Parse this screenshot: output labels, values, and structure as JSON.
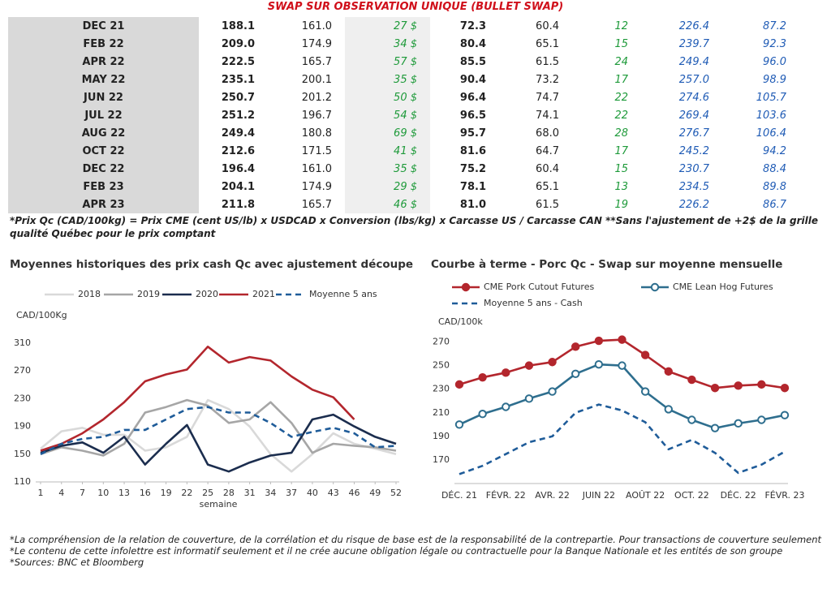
{
  "table": {
    "title": "SWAP SUR OBSERVATION UNIQUE (BULLET SWAP)",
    "rows": [
      [
        "DEC 21",
        "188.1",
        "161.0",
        "27 $",
        "72.3",
        "60.4",
        "12",
        "226.4",
        "87.2"
      ],
      [
        "FEB 22",
        "209.0",
        "174.9",
        "34 $",
        "80.4",
        "65.1",
        "15",
        "239.7",
        "92.3"
      ],
      [
        "APR 22",
        "222.5",
        "165.7",
        "57 $",
        "85.5",
        "61.5",
        "24",
        "249.4",
        "96.0"
      ],
      [
        "MAY 22",
        "235.1",
        "200.1",
        "35 $",
        "90.4",
        "73.2",
        "17",
        "257.0",
        "98.9"
      ],
      [
        "JUN 22",
        "250.7",
        "201.2",
        "50 $",
        "96.4",
        "74.7",
        "22",
        "274.6",
        "105.7"
      ],
      [
        "JUL 22",
        "251.2",
        "196.7",
        "54 $",
        "96.5",
        "74.1",
        "22",
        "269.4",
        "103.6"
      ],
      [
        "AUG 22",
        "249.4",
        "180.8",
        "69 $",
        "95.7",
        "68.0",
        "28",
        "276.7",
        "106.4"
      ],
      [
        "OCT 22",
        "212.6",
        "171.5",
        "41 $",
        "81.6",
        "64.7",
        "17",
        "245.2",
        "94.2"
      ],
      [
        "DEC 22",
        "196.4",
        "161.0",
        "35 $",
        "75.2",
        "60.4",
        "15",
        "230.7",
        "88.4"
      ],
      [
        "FEB 23",
        "204.1",
        "174.9",
        "29 $",
        "78.1",
        "65.1",
        "13",
        "234.5",
        "89.8"
      ],
      [
        "APR 23",
        "211.8",
        "165.7",
        "46 $",
        "81.0",
        "61.5",
        "19",
        "226.2",
        "86.7"
      ]
    ]
  },
  "table_note": "*Prix Qc (CAD/100kg) = Prix CME (cent US/lb) x USDCAD x Conversion (lbs/kg) x Carcasse US / Carcasse CAN **Sans l'ajustement de +2$ de la grille qualité Québec pour le prix comptant",
  "chart_data": [
    {
      "type": "line",
      "title": "Moyennes historiques des prix cash Qc avec ajustement découpe",
      "y_label": "CAD/100Kg",
      "x_label": "semaine",
      "x": [
        1,
        4,
        7,
        10,
        13,
        16,
        19,
        22,
        25,
        28,
        31,
        34,
        37,
        40,
        43,
        46,
        49,
        52
      ],
      "xlim": [
        1,
        52
      ],
      "xticks": [
        1,
        4,
        7,
        10,
        13,
        16,
        19,
        22,
        25,
        28,
        31,
        34,
        37,
        40,
        43,
        46,
        49,
        52
      ],
      "ylim": [
        110,
        310
      ],
      "yticks": [
        110,
        150,
        190,
        230,
        270,
        310
      ],
      "grid": false,
      "series": [
        {
          "name": "2018",
          "color": "#d9d9d9",
          "dash": false,
          "values": [
            158,
            183,
            188,
            178,
            178,
            155,
            160,
            175,
            228,
            215,
            190,
            150,
            125,
            150,
            180,
            165,
            158,
            150
          ]
        },
        {
          "name": "2019",
          "color": "#a6a6a6",
          "dash": false,
          "values": [
            150,
            160,
            155,
            148,
            165,
            210,
            218,
            228,
            220,
            195,
            200,
            225,
            195,
            152,
            165,
            162,
            160,
            155
          ]
        },
        {
          "name": "2020",
          "color": "#1b2d4e",
          "dash": false,
          "values": [
            152,
            162,
            167,
            152,
            175,
            135,
            165,
            192,
            135,
            125,
            138,
            148,
            152,
            200,
            207,
            190,
            175,
            165
          ]
        },
        {
          "name": "2021",
          "color": "#b3262d",
          "dash": false,
          "values": [
            155,
            165,
            180,
            200,
            225,
            255,
            265,
            272,
            305,
            282,
            290,
            285,
            262,
            243,
            232,
            200,
            null,
            null
          ]
        },
        {
          "name": "Moyenne 5 ans",
          "color": "#1f5c99",
          "dash": true,
          "values": [
            150,
            165,
            172,
            175,
            185,
            185,
            200,
            215,
            218,
            210,
            210,
            195,
            175,
            182,
            188,
            180,
            160,
            162
          ]
        }
      ]
    },
    {
      "type": "line",
      "title": "Courbe à terme - Porc Qc - Swap sur moyenne mensuelle",
      "y_label": "CAD/100k",
      "categories": [
        "DÉC. 21",
        null,
        "FÉVR. 22",
        null,
        "AVR. 22",
        null,
        "JUIN 22",
        null,
        "AOÛT 22",
        null,
        "OCT. 22",
        null,
        "DÉC. 22",
        null,
        "FÉVR. 23"
      ],
      "ylim": [
        150,
        280
      ],
      "yticks": [
        170,
        190,
        210,
        230,
        250,
        270
      ],
      "grid": false,
      "series": [
        {
          "name": "CME Pork Cutout Futures",
          "color": "#b3262d",
          "dash": false,
          "marker": "filled",
          "values": [
            234,
            240,
            244,
            250,
            253,
            266,
            271,
            272,
            259,
            245,
            238,
            231,
            233,
            234,
            231
          ]
        },
        {
          "name": "CME Lean Hog Futures",
          "color": "#2e6e8e",
          "dash": false,
          "marker": "hollow",
          "values": [
            200,
            209,
            215,
            222,
            228,
            243,
            251,
            250,
            228,
            213,
            204,
            197,
            201,
            204,
            208
          ]
        },
        {
          "name": "Moyenne 5 ans - Cash",
          "color": "#1f5c99",
          "dash": true,
          "values": [
            158,
            165,
            175,
            185,
            190,
            210,
            217,
            212,
            202,
            179,
            187,
            176,
            159,
            166,
            177
          ]
        }
      ]
    }
  ],
  "footer": [
    "*La compréhension de la relation de couverture, de la corrélation et du risque de base est de la responsabilité de la contrepartie. Pour transactions de couverture seulement",
    "*Le contenu de cette infolettre est informatif seulement et il ne crée aucune obligation légale ou contractuelle pour la Banque Nationale et les entités de son groupe",
    "*Sources: BNC et Bloomberg"
  ]
}
